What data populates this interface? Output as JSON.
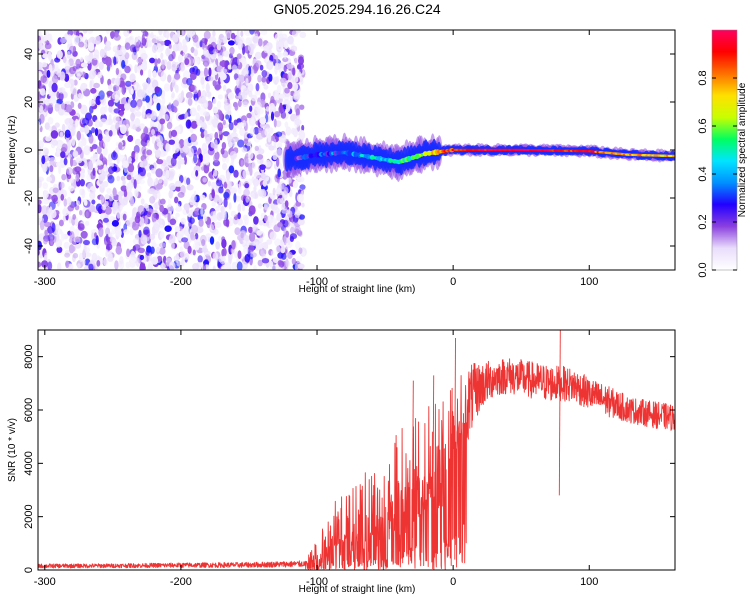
{
  "title": "GN05.2025.294.16.26.C24",
  "chart_data": [
    {
      "type": "heatmap",
      "name": "spectrogram",
      "xlabel": "Height of straight line (km)",
      "ylabel": "Frequency (Hz)",
      "xlim": [
        -305,
        163
      ],
      "ylim": [
        -50,
        50
      ],
      "xticks": [
        -300,
        -200,
        -100,
        0,
        100
      ],
      "yticks": [
        -40,
        -20,
        0,
        20,
        40
      ],
      "colorbar": {
        "label": "Normalized spectral amplitude",
        "range": [
          0,
          1
        ],
        "ticks": [
          0.0,
          0.2,
          0.4,
          0.6,
          0.8
        ],
        "colormap": [
          "#ffffff",
          "#e9ddfb",
          "#8a3fe0",
          "#2200ff",
          "#0090ff",
          "#00e5ff",
          "#00ff60",
          "#c8ff00",
          "#ffe000",
          "#ff7000",
          "#ff0000",
          "#ff0060"
        ]
      },
      "noise_region": {
        "x_range": [
          -305,
          -110
        ],
        "freq_range": [
          -50,
          50
        ]
      },
      "signal_track": [
        {
          "x": -120,
          "freq": -4.0,
          "amp": 0.3
        },
        {
          "x": -100,
          "freq": -2.0,
          "amp": 0.35
        },
        {
          "x": -80,
          "freq": -1.0,
          "amp": 0.4
        },
        {
          "x": -60,
          "freq": -3.0,
          "amp": 0.5
        },
        {
          "x": -40,
          "freq": -5.0,
          "amp": 0.55
        },
        {
          "x": -20,
          "freq": -1.5,
          "amp": 0.7
        },
        {
          "x": 0,
          "freq": 0.0,
          "amp": 0.9
        },
        {
          "x": 50,
          "freq": 0.0,
          "amp": 1.0
        },
        {
          "x": 100,
          "freq": -0.5,
          "amp": 0.9
        },
        {
          "x": 130,
          "freq": -2.0,
          "amp": 0.8
        },
        {
          "x": 163,
          "freq": -2.5,
          "amp": 0.75
        }
      ]
    },
    {
      "type": "line",
      "name": "snr",
      "xlabel": "Height of straight line (km)",
      "ylabel": "SNR (10 * v/v)",
      "xlim": [
        -305,
        163
      ],
      "ylim": [
        0,
        9000
      ],
      "xticks": [
        -300,
        -200,
        -100,
        0,
        100
      ],
      "yticks": [
        0,
        2000,
        4000,
        6000,
        8000
      ],
      "color": "#ee3333",
      "envelope": {
        "x": [
          -305,
          -250,
          -200,
          -150,
          -110,
          -100,
          -90,
          -80,
          -70,
          -60,
          -50,
          -40,
          -30,
          -20,
          -10,
          0,
          10,
          20,
          30,
          40,
          50,
          60,
          70,
          80,
          90,
          100,
          110,
          120,
          130,
          140,
          150,
          163
        ],
        "mean": [
          150,
          160,
          180,
          190,
          230,
          500,
          1000,
          1300,
          1500,
          1700,
          2000,
          2500,
          3000,
          3300,
          3500,
          4800,
          6200,
          6900,
          7200,
          7300,
          7200,
          7100,
          7000,
          7000,
          6900,
          6600,
          6400,
          6200,
          6000,
          5900,
          5800,
          5700
        ],
        "spread": [
          80,
          80,
          90,
          100,
          120,
          700,
          1400,
          1500,
          1700,
          2000,
          2000,
          2500,
          3000,
          2800,
          3000,
          2200,
          1500,
          900,
          700,
          700,
          700,
          700,
          700,
          650,
          650,
          600,
          600,
          550,
          500,
          500,
          500,
          500
        ]
      },
      "spikes": [
        {
          "x": -30,
          "y": 7100
        },
        {
          "x": -15,
          "y": 7300
        },
        {
          "x": 1,
          "y": 8700
        },
        {
          "x": 78,
          "y": 9000
        }
      ]
    }
  ]
}
